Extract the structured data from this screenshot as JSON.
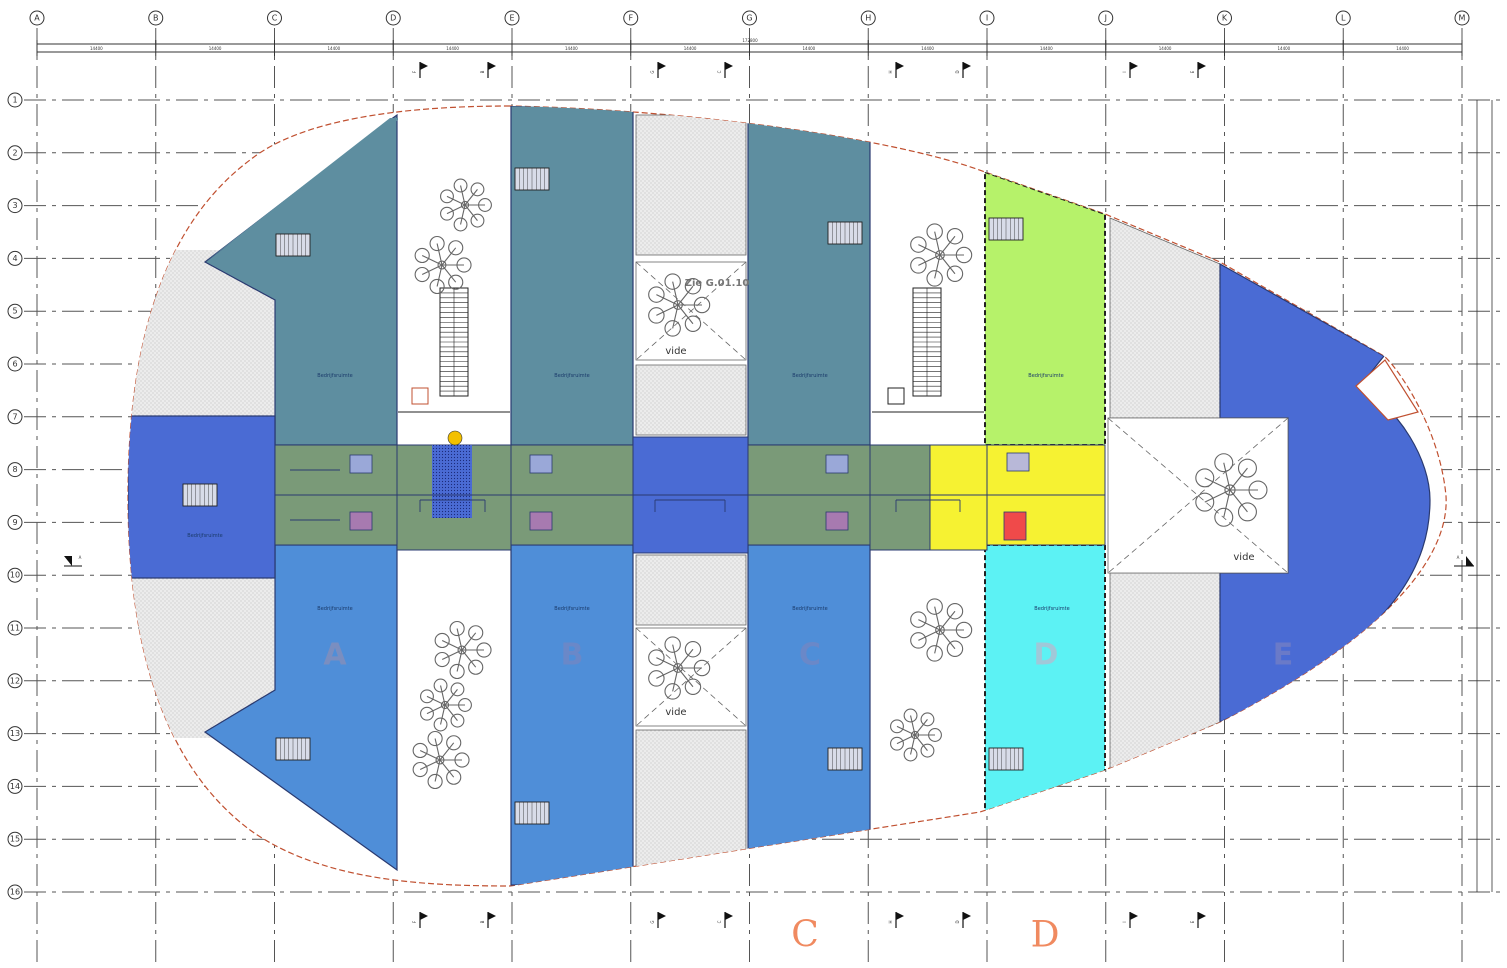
{
  "grid": {
    "columns": [
      "A",
      "B",
      "C",
      "D",
      "E",
      "F",
      "G",
      "H",
      "I",
      "J",
      "K",
      "L",
      "M"
    ],
    "rows": [
      "1",
      "2",
      "3",
      "4",
      "5",
      "6",
      "7",
      "8",
      "9",
      "10",
      "11",
      "12",
      "13",
      "14",
      "15",
      "16"
    ],
    "bay_dimension": "14400",
    "total_dimension": "172800"
  },
  "zones": {
    "A": "A",
    "B": "B",
    "C": "C",
    "D": "D",
    "E": "E"
  },
  "blocks": {
    "C": "C",
    "D": "D"
  },
  "rooms": {
    "label": "Bedrijfsruimte"
  },
  "labels": {
    "vide": "vide",
    "see_note": "Zie G.01.10"
  },
  "section_marks": {
    "A": "A",
    "left_sub": "100",
    "top": [
      "F",
      "B",
      "G",
      "C",
      "H",
      "D",
      "I",
      "E"
    ],
    "bottom": [
      "F",
      "B",
      "G",
      "C",
      "H",
      "D",
      "I",
      "E"
    ]
  },
  "colors": {
    "dark_blue": "#4a6bd4",
    "teal": "#5e8ea0",
    "mid_blue": "#4f8ed8",
    "green_core": "#7a9a78",
    "lime": "#b6f26a",
    "cyan": "#5cf2f4",
    "yellow": "#f6f232",
    "red_room": "#f04a4a",
    "block_label": "#f08a60"
  }
}
